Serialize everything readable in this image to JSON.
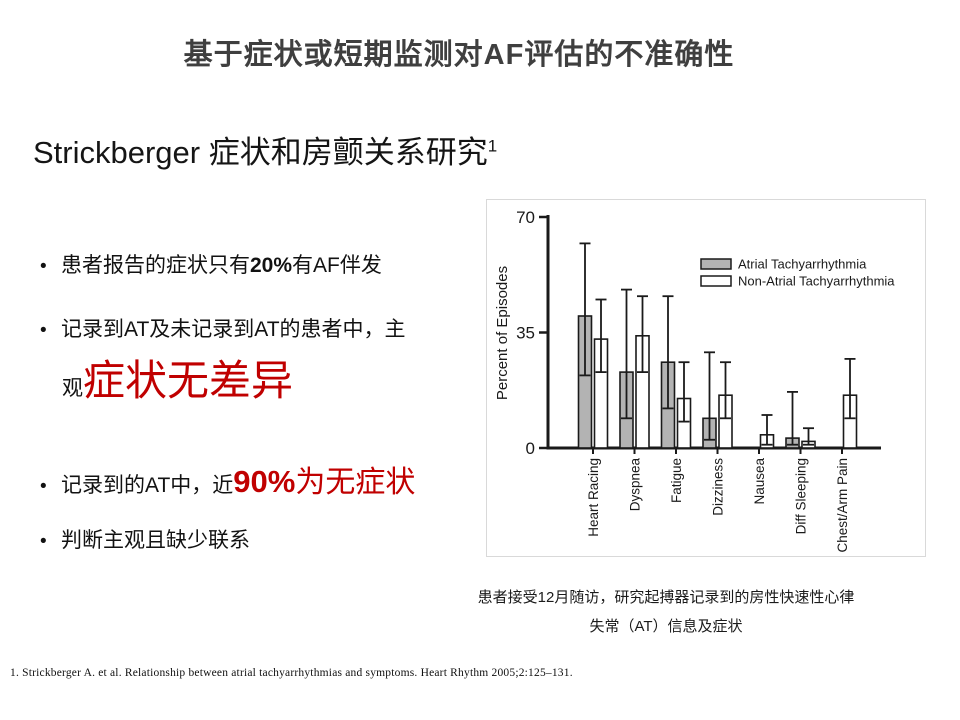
{
  "slide": {
    "title": "基于症状或短期监测对AF评估的不准确性",
    "subtitle": {
      "text": "Strickberger 症状和房颤关系研究",
      "sup": "1"
    },
    "bullet_glyph": "•",
    "bullets": {
      "b1": {
        "pre": "患者报告的症状只有",
        "em": "20%",
        "post": "有AF伴发"
      },
      "b2": {
        "line1": "记录到AT及未记录到AT的患者中，主",
        "line2_plain": "观",
        "line2_red": "症状无差异"
      },
      "b3": {
        "pre": "记录到的AT中，近",
        "em": "90%",
        "post": "为无症状"
      },
      "b4": "判断主观且缺少联系"
    },
    "caption": {
      "line1": "患者接受12月随访，研究起搏器记录到的房性快速性心律",
      "line2": "失常（AT）信息及症状"
    },
    "footnote": "1. Strickberger A. et al. Relationship between atrial tachyarrhythmias and symptoms. Heart Rhythm 2005;2:125–131.",
    "colors": {
      "accent_red": "#c00000",
      "title_gray": "#3f3f3f",
      "bar_gray": "#b3b3b3",
      "panel_border": "#d9d9d9",
      "ink": "#1a1a1a"
    }
  },
  "chart_data": {
    "type": "bar",
    "title": "",
    "xlabel": "",
    "ylabel": "Percent of Episodes",
    "ylim": [
      0,
      70
    ],
    "yticks": [
      0,
      35,
      70
    ],
    "grid": false,
    "legend_position": "top-right",
    "categories": [
      "Heart Racing",
      "Dyspnea",
      "Fatigue",
      "Dizziness",
      "Nausea",
      "Diff Sleeping",
      "Chest/Arm Pain"
    ],
    "series": [
      {
        "name": "Atrial Tachyarrhythmia",
        "fill": "#b3b3b3",
        "values": [
          40,
          23,
          26,
          9,
          0,
          3,
          0
        ],
        "err_low": [
          22,
          9,
          12,
          2.5,
          null,
          1,
          null
        ],
        "err_high": [
          62,
          48,
          46,
          29,
          null,
          17,
          null
        ]
      },
      {
        "name": "Non-Atrial Tachyarrhythmia",
        "fill": "#ffffff",
        "values": [
          33,
          34,
          15,
          16,
          4,
          2,
          16
        ],
        "err_low": [
          23,
          23,
          8,
          9,
          1,
          1,
          9
        ],
        "err_high": [
          45,
          46,
          26,
          26,
          10,
          6,
          27
        ]
      }
    ]
  }
}
